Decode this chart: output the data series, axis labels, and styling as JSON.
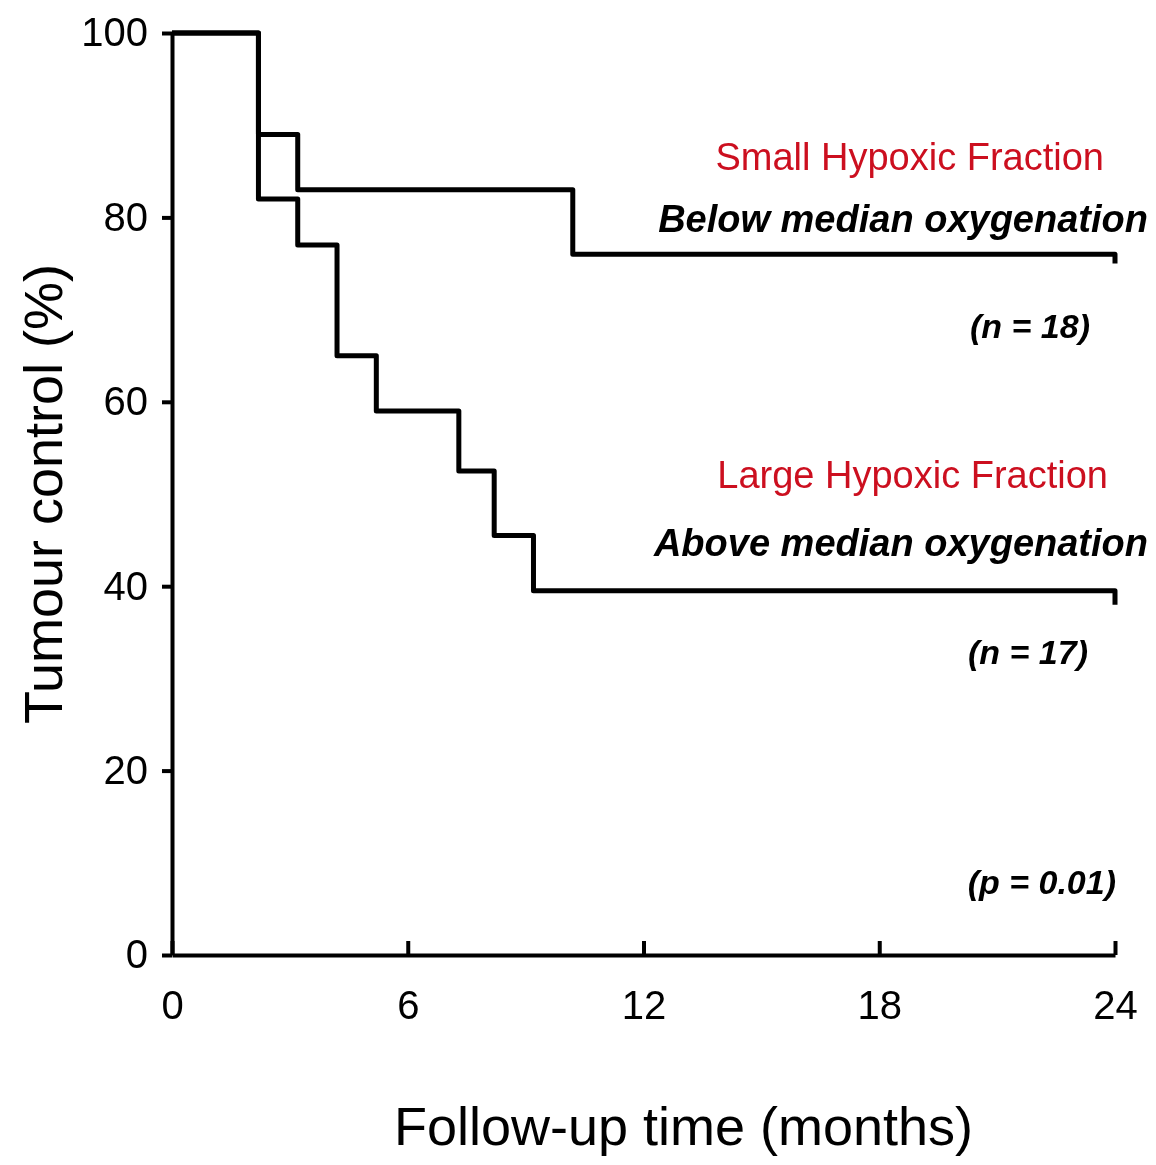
{
  "chart_data": {
    "type": "step",
    "xlabel": "Follow-up  time  (months)",
    "ylabel": "Tumour  control  (%)",
    "xlim": [
      0,
      24
    ],
    "ylim": [
      0,
      100
    ],
    "xticks": [
      0,
      6,
      12,
      18,
      24
    ],
    "yticks": [
      0,
      20,
      40,
      60,
      80,
      100
    ],
    "grid": false,
    "marker": "none",
    "line_style": "solid",
    "series": [
      {
        "name": "Small Hypoxic Fraction",
        "color": "#000000",
        "x": [
          0,
          2.2,
          3.2,
          10.2,
          24
        ],
        "values": [
          100,
          89,
          83,
          76,
          75
        ]
      },
      {
        "name": "Large Hypoxic Fraction",
        "color": "#000000",
        "x": [
          0,
          2.2,
          3.2,
          4.2,
          5.2,
          7.3,
          8.2,
          9.2,
          24
        ],
        "values": [
          100,
          82,
          77,
          65,
          59,
          52.5,
          45.5,
          39.5,
          38
        ]
      }
    ],
    "annotations": [
      "Below median oxygenation",
      "(n = 18)",
      "Above median oxygenation",
      "(n = 17)",
      "(p = 0.01)"
    ]
  }
}
